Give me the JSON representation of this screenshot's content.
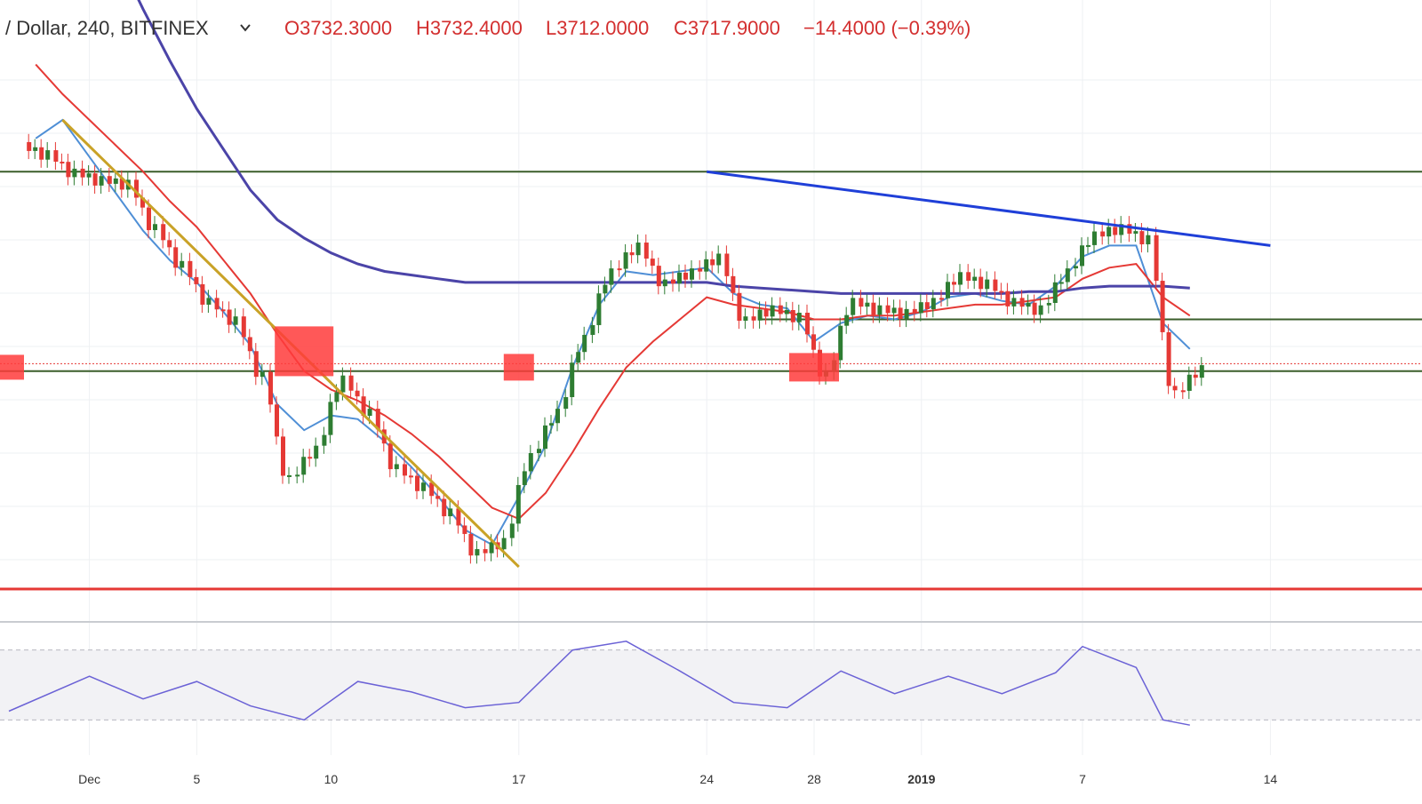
{
  "header": {
    "symbol": "/ Dollar, 240, BITFINEX",
    "chevron_icon": "chevron-down-icon",
    "open": "O3732.3000",
    "high": "H3732.4000",
    "low": "L3712.0000",
    "close": "C3717.9000",
    "change": "−14.4000 (−0.39%)"
  },
  "colors": {
    "up": "#2e7d32",
    "down": "#e53935",
    "ema_fast": "#4f8fd6",
    "ema_slow": "#e53935",
    "ma_long": "#4b44a8",
    "trend_down": "#c9a227",
    "trend_top": "#1f3fd8",
    "support_lines": "#3b5e2b",
    "floor_line": "#e53935",
    "highlight": "#ff3b3b",
    "rsi_line": "#6b62d6",
    "text_red": "#d32f2f"
  },
  "chart_data": [
    {
      "type": "candlestick",
      "title": "",
      "x_axis_ticks": [
        "Dec",
        "5",
        "10",
        "17",
        "24",
        "28",
        "2019",
        "7",
        "14"
      ],
      "grid": true,
      "last_close": 3717.9,
      "x": [
        "Nov 29",
        "Nov 30",
        "Dec 1",
        "Dec 2",
        "Dec 3",
        "Dec 4",
        "Dec 5",
        "Dec 6",
        "Dec 7",
        "Dec 8",
        "Dec 9",
        "Dec 10",
        "Dec 11",
        "Dec 12",
        "Dec 13",
        "Dec 14",
        "Dec 15",
        "Dec 16",
        "Dec 17",
        "Dec 18",
        "Dec 19",
        "Dec 20",
        "Dec 21",
        "Dec 22",
        "Dec 23",
        "Dec 24",
        "Dec 25",
        "Dec 26",
        "Dec 27",
        "Dec 28",
        "Dec 29",
        "Dec 30",
        "Dec 31",
        "Jan 1",
        "Jan 2",
        "Jan 3",
        "Jan 4",
        "Jan 5",
        "Jan 6",
        "Jan 7",
        "Jan 8",
        "Jan 9",
        "Jan 10",
        "Jan 11"
      ],
      "close": [
        4300,
        4250,
        4230,
        4220,
        4100,
        4000,
        3900,
        3850,
        3700,
        3420,
        3500,
        3690,
        3600,
        3450,
        3400,
        3330,
        3220,
        3250,
        3480,
        3600,
        3800,
        3980,
        4050,
        3950,
        3980,
        4020,
        3850,
        3880,
        3860,
        3700,
        3900,
        3880,
        3870,
        3900,
        3970,
        3950,
        3900,
        3880,
        3980,
        4080,
        4100,
        4070,
        3650,
        3718
      ],
      "series": [
        {
          "name": "",
          "values": [
            4350,
            4400,
            4300,
            4200,
            4100,
            4020,
            3960,
            3880,
            3790,
            3630,
            3560,
            3600,
            3590,
            3530,
            3460,
            3380,
            3290,
            3250,
            3380,
            3520,
            3730,
            3900,
            3990,
            3980,
            3990,
            4000,
            3930,
            3900,
            3890,
            3800,
            3850,
            3870,
            3860,
            3880,
            3920,
            3930,
            3910,
            3900,
            3950,
            4030,
            4060,
            4060,
            3850,
            3780
          ]
        },
        {
          "name": "",
          "values": [
            4550,
            4470,
            4400,
            4330,
            4260,
            4180,
            4110,
            4020,
            3930,
            3820,
            3720,
            3670,
            3640,
            3600,
            3550,
            3490,
            3420,
            3350,
            3320,
            3390,
            3500,
            3620,
            3730,
            3800,
            3860,
            3920,
            3900,
            3890,
            3880,
            3860,
            3860,
            3870,
            3870,
            3880,
            3890,
            3900,
            3900,
            3910,
            3920,
            3970,
            4000,
            4010,
            3920,
            3870
          ]
        },
        {
          "name": "",
          "values": [
            5300,
            5150,
            5000,
            4850,
            4700,
            4560,
            4430,
            4320,
            4210,
            4130,
            4080,
            4040,
            4010,
            3990,
            3980,
            3970,
            3960,
            3960,
            3960,
            3960,
            3960,
            3960,
            3960,
            3960,
            3960,
            3960,
            3950,
            3945,
            3940,
            3935,
            3930,
            3930,
            3930,
            3930,
            3930,
            3930,
            3930,
            3935,
            3935,
            3945,
            3950,
            3950,
            3950,
            3945
          ]
        }
      ],
      "annotations": {
        "resistance_level": 4260,
        "mid_level": 3740,
        "lower_level": 3720,
        "floor_level": 3130,
        "descending_trendline": {
          "from": [
            "Nov 30",
            4400
          ],
          "to": [
            "Dec 17",
            3190
          ]
        },
        "upper_trendline": {
          "from": [
            "Dec 24",
            4260
          ],
          "to": [
            "Jan 14",
            4060
          ]
        },
        "shelf_level": 3860,
        "highlight_zones": [
          "Nov 28",
          "Dec 9",
          "Dec 17",
          "Dec 28"
        ]
      }
    },
    {
      "type": "line",
      "title": "",
      "indicator": "oscillator",
      "bands": [
        70,
        30
      ],
      "ylim": [
        20,
        80
      ],
      "x": [
        "Nov 28",
        "Dec 1",
        "Dec 3",
        "Dec 5",
        "Dec 7",
        "Dec 9",
        "Dec 11",
        "Dec 13",
        "Dec 15",
        "Dec 17",
        "Dec 19",
        "Dec 21",
        "Dec 23",
        "Dec 25",
        "Dec 27",
        "Dec 29",
        "Dec 31",
        "Jan 2",
        "Jan 4",
        "Jan 6",
        "Jan 7",
        "Jan 9",
        "Jan 10",
        "Jan 11"
      ],
      "values": [
        35,
        55,
        42,
        52,
        38,
        30,
        52,
        46,
        37,
        40,
        70,
        75,
        58,
        40,
        37,
        58,
        45,
        55,
        45,
        57,
        72,
        60,
        30,
        27
      ]
    }
  ]
}
